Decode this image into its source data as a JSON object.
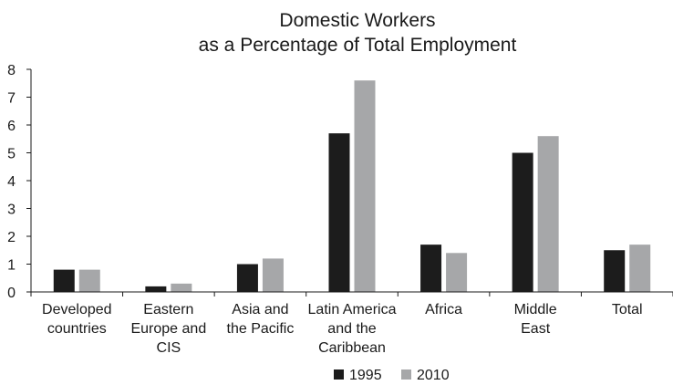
{
  "chart_data": {
    "type": "bar",
    "title": [
      "Domestic Workers",
      "as a Percentage of Total Employment"
    ],
    "xlabel": "",
    "ylabel": "",
    "ylim": [
      0,
      8
    ],
    "yticks": [
      "0",
      "1",
      "2",
      "3",
      "4",
      "5",
      "6",
      "7",
      "8"
    ],
    "categories": [
      [
        "Developed",
        "countries"
      ],
      [
        "Eastern",
        "Europe and",
        "CIS"
      ],
      [
        "Asia and",
        "the Pacific"
      ],
      [
        "Latin America",
        "and the",
        "Caribbean"
      ],
      [
        "Africa"
      ],
      [
        "Middle",
        "East"
      ],
      [
        "Total"
      ]
    ],
    "series": [
      {
        "name": "1995",
        "color": "#1c1c1c",
        "values": [
          0.8,
          0.2,
          1.0,
          5.7,
          1.7,
          5.0,
          1.5
        ]
      },
      {
        "name": "2010",
        "color": "#a6a7a9",
        "values": [
          0.8,
          0.3,
          1.2,
          7.6,
          1.4,
          5.6,
          1.7
        ]
      }
    ],
    "grid": false,
    "legend_position": "bottom-center"
  }
}
